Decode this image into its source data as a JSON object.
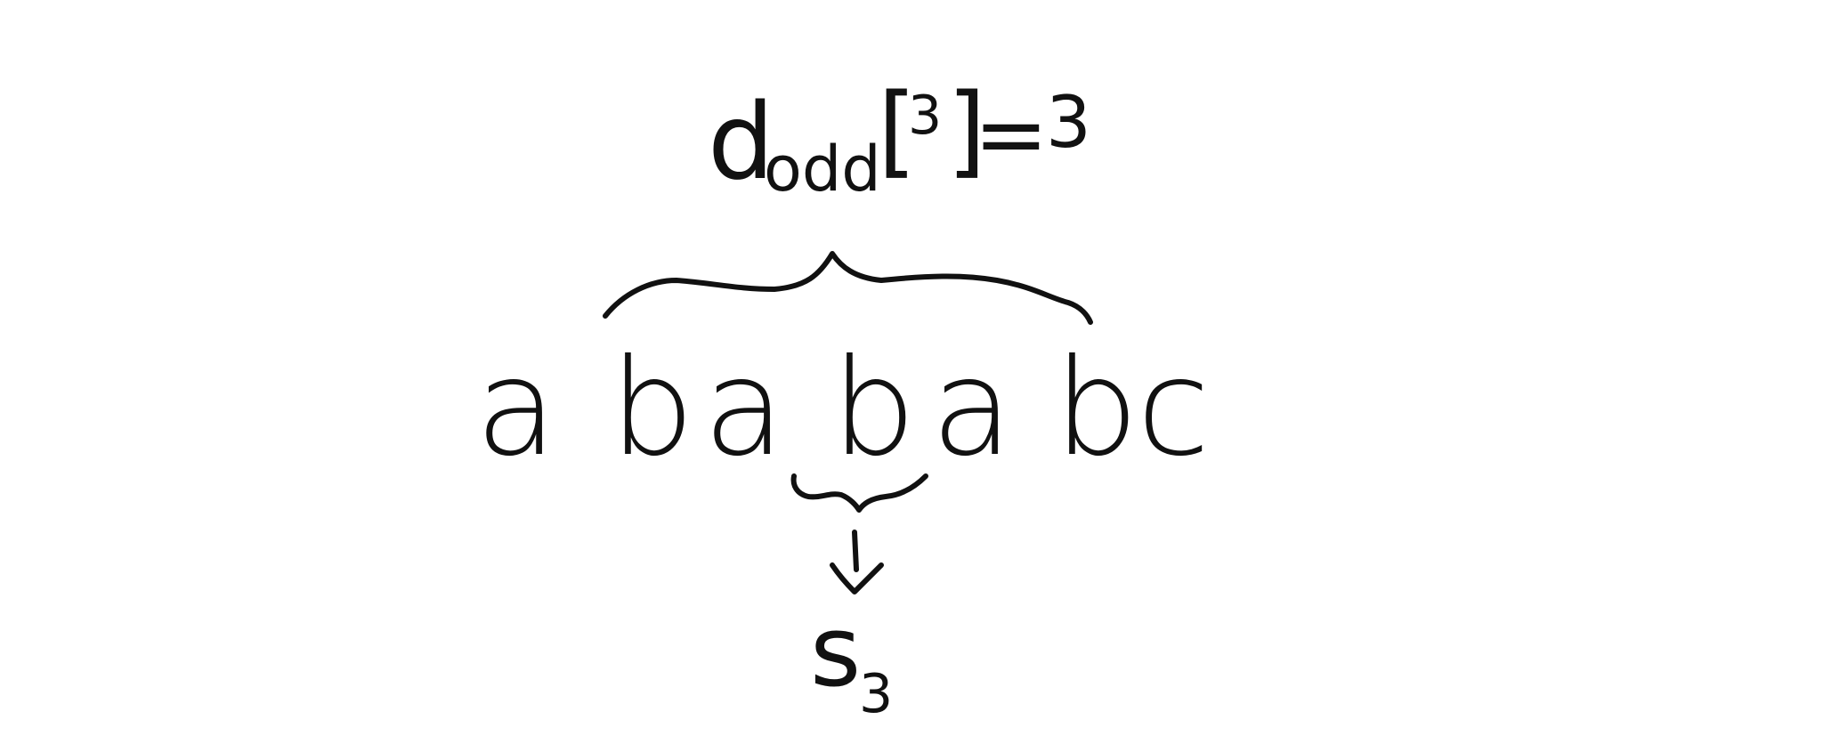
{
  "diagram": {
    "formula": {
      "symbol": "d",
      "subscript": "odd",
      "open_bracket": "[",
      "index": "3",
      "close_bracket": "]",
      "equals": "=",
      "value": "3"
    },
    "string": {
      "characters": [
        "a",
        "b",
        "a",
        "b",
        "a",
        "b",
        "c"
      ]
    },
    "result": {
      "symbol": "s",
      "subscript": "3"
    }
  }
}
